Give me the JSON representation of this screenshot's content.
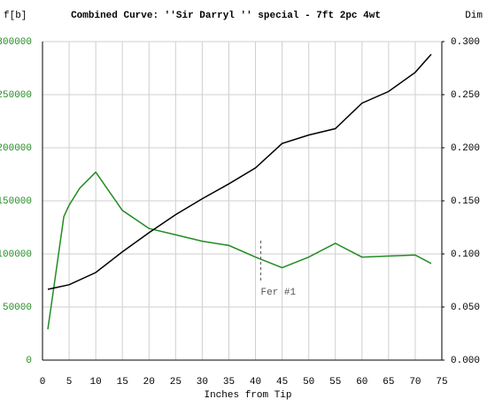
{
  "chart_data": {
    "type": "line",
    "title": "Combined Curve: ''Sir Darryl '' special - 7ft 2pc 4wt",
    "y_label": "f[b]",
    "y2_label": "Dim",
    "x_label": "Inches from Tip",
    "xlim": [
      0,
      75
    ],
    "xticks": [
      0,
      5,
      10,
      15,
      20,
      25,
      30,
      35,
      40,
      45,
      50,
      55,
      60,
      65,
      70,
      75
    ],
    "ylim": [
      0,
      300000
    ],
    "yticks": [
      0,
      50000,
      100000,
      150000,
      200000,
      250000,
      300000
    ],
    "y2lim": [
      0,
      0.3
    ],
    "y2ticks": [
      {
        "value": 0,
        "label": "0.000"
      },
      {
        "value": 0.05,
        "label": "0.050"
      },
      {
        "value": 0.1,
        "label": "0.100"
      },
      {
        "value": 0.15,
        "label": "0.150"
      },
      {
        "value": 0.2,
        "label": "0.200"
      },
      {
        "value": 0.25,
        "label": "0.250"
      },
      {
        "value": 0.3,
        "label": "0.300"
      }
    ],
    "grid": true,
    "y_tick_color": "#228b22",
    "series": [
      {
        "color": "#228b22",
        "x": [
          1,
          2,
          4,
          5,
          7,
          10,
          15,
          20,
          25,
          30,
          35,
          40,
          45,
          50,
          55,
          60,
          65,
          70,
          73
        ],
        "values": [
          29000,
          64000,
          135000,
          146000,
          162000,
          177000,
          141000,
          124000,
          118000,
          112000,
          108000,
          97000,
          87000,
          97000,
          110000,
          97000,
          98000,
          99000,
          91000
        ]
      },
      {
        "color": "#000000",
        "axis": "y2",
        "x": [
          1,
          5,
          10,
          15,
          20,
          25,
          30,
          35,
          40,
          45,
          50,
          55,
          60,
          65,
          70,
          73
        ],
        "values": [
          0.0667,
          0.071,
          0.0825,
          0.102,
          0.12,
          0.137,
          0.152,
          0.166,
          0.181,
          0.204,
          0.212,
          0.218,
          0.242,
          0.253,
          0.271,
          0.288
        ]
      }
    ],
    "annotations": [
      {
        "text": "Fer #1",
        "x": 41
      }
    ]
  }
}
